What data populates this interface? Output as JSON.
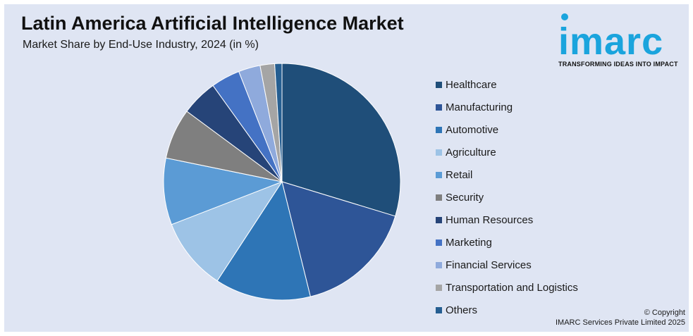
{
  "header": {
    "title": "Latin America Artificial Intelligence Market",
    "subtitle": "Market Share by End-Use Industry, 2024 (in %)"
  },
  "logo": {
    "word": "imarc",
    "tagline": "TRANSFORMING IDEAS INTO IMPACT"
  },
  "footer": {
    "copyright_line1": "© Copyright",
    "copyright_line2": "IMARC Services Private Limited 2025"
  },
  "colors": {
    "background": "#dfe5f3",
    "brand": "#1aa4dd"
  },
  "chart_data": {
    "type": "pie",
    "legend_position": "right",
    "categories": [
      "Healthcare",
      "Manufacturing",
      "Automotive",
      "Agriculture",
      "Retail",
      "Security",
      "Human Resources",
      "Marketing",
      "Financial Services",
      "Transportation and Logistics",
      "Others"
    ],
    "values": [
      30,
      16.6,
      13.2,
      10,
      9.2,
      7,
      5,
      4,
      3,
      2,
      1
    ],
    "colors": [
      "#1f4e79",
      "#2e5597",
      "#2e75b6",
      "#9dc3e6",
      "#5b9bd5",
      "#7f7f7f",
      "#264478",
      "#4472c4",
      "#8faadc",
      "#a5a5a5",
      "#255e91"
    ]
  }
}
